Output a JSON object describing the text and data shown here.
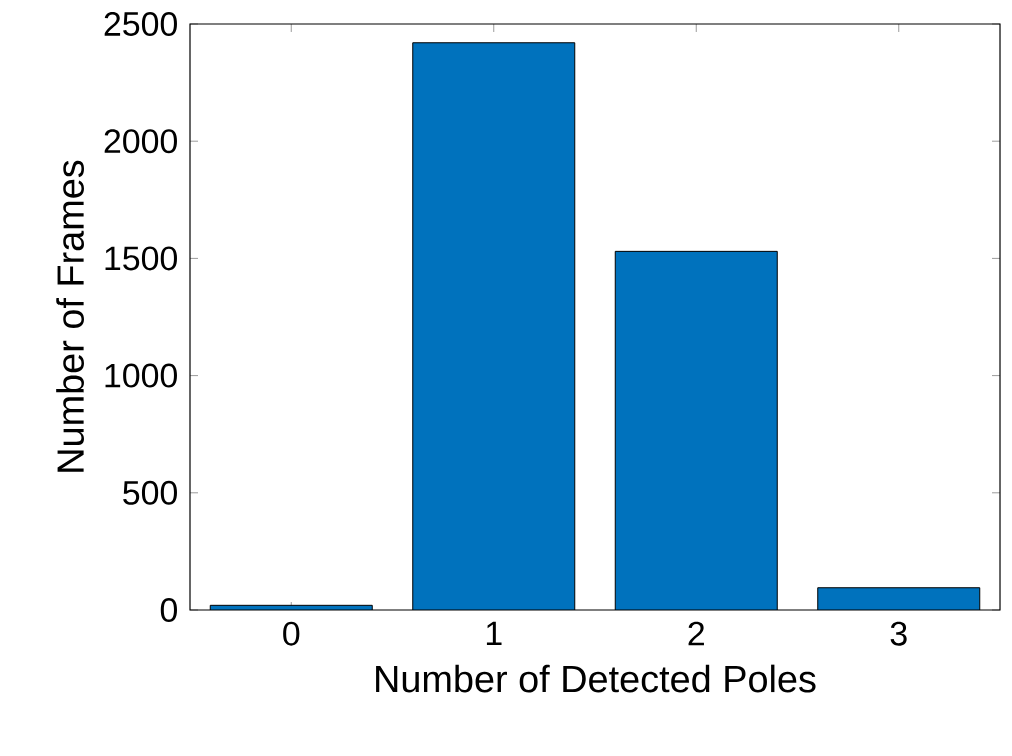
{
  "chart_data": {
    "type": "bar",
    "xlabel": "Number of Detected Poles",
    "ylabel": "Number of Frames",
    "categories": [
      "0",
      "1",
      "2",
      "3"
    ],
    "values": [
      20,
      2420,
      1530,
      95
    ],
    "color": "#0072bd",
    "ylim": [
      0,
      2500
    ],
    "yticks": [
      0,
      500,
      1000,
      1500,
      2000,
      2500
    ],
    "grid": false
  }
}
